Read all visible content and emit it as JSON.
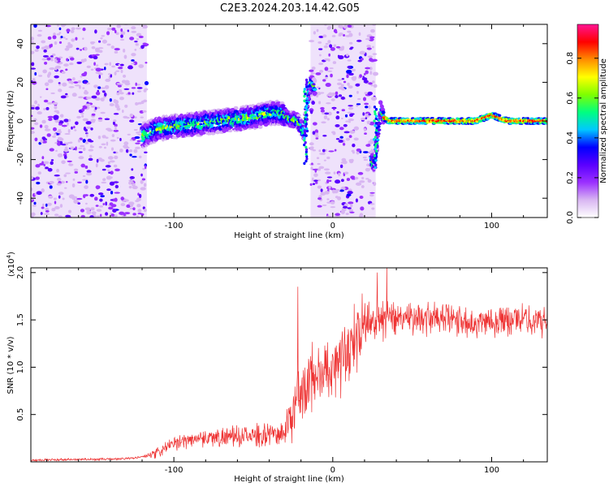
{
  "figure": {
    "title": "C2E3.2024.203.14.42.G05"
  },
  "chart_data": [
    {
      "type": "heatmap",
      "xlabel": "Height of straight line (km)",
      "ylabel": "Frequency (Hz)",
      "xlim": [
        -190,
        135
      ],
      "ylim": [
        -50,
        50
      ],
      "xticks": [
        "-100",
        "0",
        "100"
      ],
      "yticks": [
        "-40",
        "-20",
        "0",
        "20",
        "40"
      ],
      "xtick_values": [
        -100,
        0,
        100
      ],
      "ytick_values": [
        -40,
        -20,
        0,
        20,
        40
      ],
      "noise_regions": [
        [
          -190,
          -117
        ],
        [
          -14,
          27
        ]
      ],
      "ridge": [
        [
          -130,
          -13
        ],
        [
          -120,
          -8
        ],
        [
          -110,
          -4
        ],
        [
          -100,
          -3
        ],
        [
          -90,
          -2
        ],
        [
          -80,
          -1
        ],
        [
          -70,
          0
        ],
        [
          -60,
          1
        ],
        [
          -50,
          2
        ],
        [
          -40,
          4
        ],
        [
          -33,
          4
        ],
        [
          -27,
          1
        ],
        [
          -22,
          0
        ],
        [
          -18,
          -6
        ],
        [
          -16,
          10
        ],
        [
          -14,
          20
        ],
        [
          26,
          -22
        ],
        [
          28,
          -10
        ],
        [
          30,
          6
        ],
        [
          32,
          2
        ],
        [
          35,
          0
        ],
        [
          60,
          0
        ],
        [
          90,
          0
        ],
        [
          100,
          3
        ],
        [
          110,
          0
        ],
        [
          135,
          0
        ]
      ],
      "colorbar": {
        "label": "Normalized spectral amplitude",
        "ticks": [
          "0.0",
          "0.2",
          "0.4",
          "0.6",
          "0.8"
        ],
        "tick_values": [
          0,
          0.2,
          0.4,
          0.6,
          0.8
        ],
        "range": [
          0,
          0.97
        ],
        "stops": [
          "#ffffff",
          "#d8b6f2",
          "#9b30ff",
          "#5a00ff",
          "#0000ff",
          "#00c8ff",
          "#00ff7f",
          "#7fff00",
          "#ffff00",
          "#ff8c00",
          "#ff0000",
          "#ff1493"
        ]
      }
    },
    {
      "type": "line",
      "xlabel": "Height of straight line (km)",
      "ylabel": "SNR (10 * v/v)",
      "yscale_label": "(x10",
      "yscale_exp": "4",
      "yscale_suffix": ")",
      "xlim": [
        -190,
        135
      ],
      "ylim": [
        0,
        2.05
      ],
      "xticks": [
        "-100",
        "0",
        "100"
      ],
      "yticks": [
        "0.5",
        "1.0",
        "1.5",
        "2.0"
      ],
      "xtick_values": [
        -100,
        0,
        100
      ],
      "ytick_values": [
        0.5,
        1.0,
        1.5,
        2.0
      ],
      "color": "#ee3333",
      "envelope": [
        [
          -190,
          0.02
        ],
        [
          -140,
          0.03
        ],
        [
          -125,
          0.04
        ],
        [
          -112,
          0.08
        ],
        [
          -105,
          0.16
        ],
        [
          -95,
          0.22
        ],
        [
          -85,
          0.26
        ],
        [
          -70,
          0.27
        ],
        [
          -55,
          0.28
        ],
        [
          -40,
          0.3
        ],
        [
          -32,
          0.32
        ],
        [
          -26,
          0.45
        ],
        [
          -22,
          0.7
        ],
        [
          -16,
          0.9
        ],
        [
          -8,
          0.95
        ],
        [
          0,
          1.05
        ],
        [
          6,
          1.15
        ],
        [
          12,
          1.3
        ],
        [
          18,
          1.45
        ],
        [
          25,
          1.52
        ],
        [
          35,
          1.55
        ],
        [
          50,
          1.55
        ],
        [
          70,
          1.52
        ],
        [
          90,
          1.5
        ],
        [
          110,
          1.52
        ],
        [
          135,
          1.5
        ]
      ],
      "spread": [
        [
          -190,
          0.01
        ],
        [
          -120,
          0.01
        ],
        [
          -110,
          0.05
        ],
        [
          -60,
          0.09
        ],
        [
          -32,
          0.1
        ],
        [
          -24,
          0.25
        ],
        [
          -10,
          0.3
        ],
        [
          10,
          0.3
        ],
        [
          40,
          0.15
        ],
        [
          135,
          0.13
        ]
      ],
      "spikes": [
        [
          -22,
          1.85
        ],
        [
          28,
          2.0
        ],
        [
          34,
          2.05
        ]
      ]
    }
  ]
}
